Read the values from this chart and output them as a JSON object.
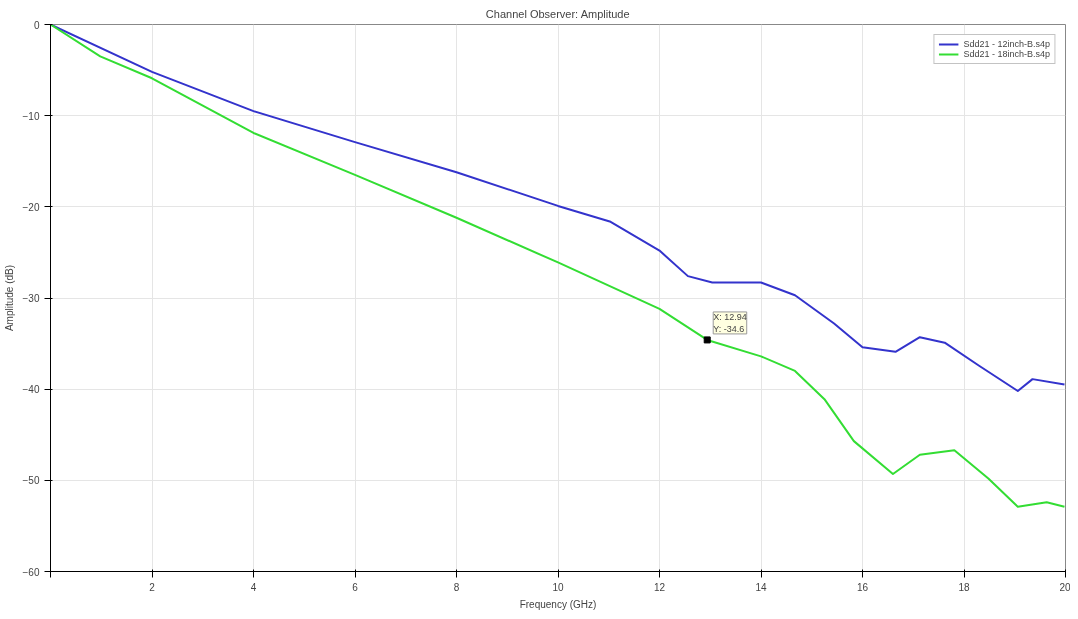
{
  "chart_data": {
    "type": "line",
    "title": "Channel Observer: Amplitude",
    "xlabel": "Frequency (GHz)",
    "ylabel": "Amplitude (dB)",
    "xlim": [
      0,
      20
    ],
    "xticks": [
      {
        "value": 0,
        "label": null
      },
      2,
      4,
      6,
      8,
      10,
      12,
      14,
      16,
      18,
      20
    ],
    "ylim": [
      -60,
      0
    ],
    "yticks": [
      -60,
      -50,
      -40,
      -30,
      -20,
      -10,
      0
    ],
    "grid": true,
    "legend": "top right",
    "marker": "none",
    "line_style": "solid",
    "series": [
      {
        "name": "Sdd21 - 12inch-B.s4p",
        "color": "#3333cc",
        "x": [
          0,
          2,
          4,
          6,
          8,
          10,
          11.02,
          12,
          12.56,
          13.04,
          14,
          14.67,
          15.44,
          16.0,
          16.65,
          17.13,
          17.62,
          18.29,
          19.06,
          19.35,
          19.98
        ],
        "values": [
          0,
          -5.2,
          -9.5,
          -12.9,
          -16.2,
          -19.9,
          -21.6,
          -24.8,
          -27.6,
          -28.3,
          -28.3,
          -29.7,
          -32.8,
          -35.4,
          -35.9,
          -34.3,
          -34.9,
          -37.4,
          -40.2,
          -38.9,
          -39.5
        ]
      },
      {
        "name": "Sdd21 - 18inch-B.s4p",
        "color": "#33dd33",
        "x": [
          0,
          0.98,
          2,
          4,
          6,
          8,
          10,
          12,
          12.94,
          14,
          14.67,
          15.25,
          15.83,
          16.6,
          17.13,
          17.81,
          18.48,
          19.06,
          19.63,
          19.98
        ],
        "values": [
          0,
          -3.5,
          -5.9,
          -11.9,
          -16.5,
          -21.2,
          -26.1,
          -31.2,
          -34.6,
          -36.4,
          -38.0,
          -41.1,
          -45.7,
          -49.3,
          -47.2,
          -46.7,
          -49.8,
          -52.9,
          -52.4,
          -52.9
        ]
      }
    ],
    "annotations": [
      {
        "text": "X: 12.94\nY: -34.6",
        "x": 12.94,
        "y": -34.6
      }
    ]
  }
}
